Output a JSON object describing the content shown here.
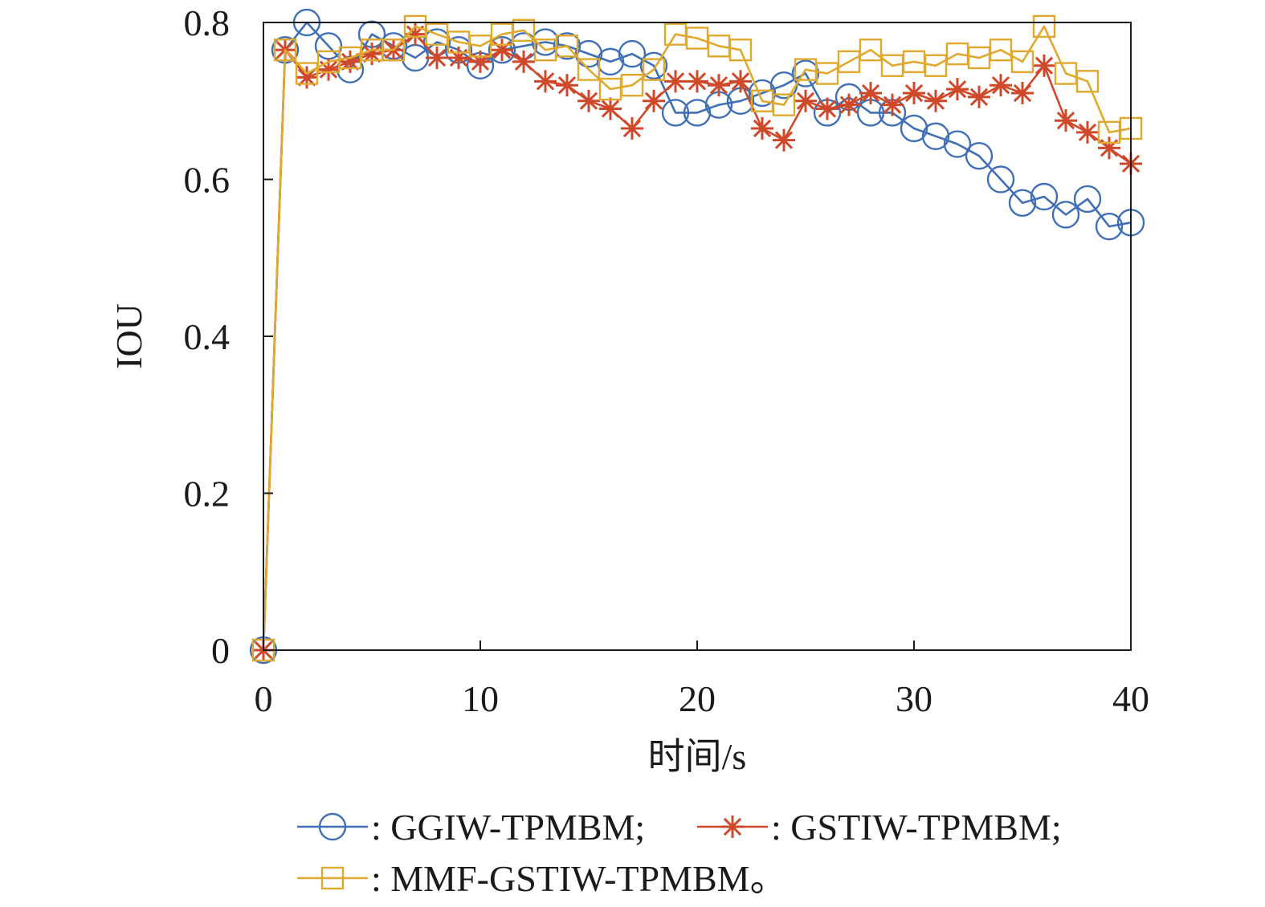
{
  "chart_data": {
    "type": "line",
    "title": "",
    "xlabel": "时间/s",
    "ylabel": "IOU",
    "xlim": [
      0,
      40
    ],
    "ylim": [
      0,
      0.8
    ],
    "xticks": [
      0,
      10,
      20,
      30,
      40
    ],
    "xtick_labels": [
      "0",
      "10",
      "20",
      "30",
      "40"
    ],
    "yticks": [
      0,
      0.2,
      0.4,
      0.6,
      0.8
    ],
    "ytick_labels": [
      "0",
      "0.2",
      "0.4",
      "0.6",
      "0.8"
    ],
    "grid": false,
    "legend_position": "bottom",
    "x": [
      0,
      1,
      2,
      3,
      4,
      5,
      6,
      7,
      8,
      9,
      10,
      11,
      12,
      13,
      14,
      15,
      16,
      17,
      18,
      19,
      20,
      21,
      22,
      23,
      24,
      25,
      26,
      27,
      28,
      29,
      30,
      31,
      32,
      33,
      34,
      35,
      36,
      37,
      38,
      39,
      40
    ],
    "series": [
      {
        "name": "GGIW-TPMBM",
        "label": ": GGIW-TPMBM;",
        "color": "#3f6fb5",
        "marker": "circle",
        "values": [
          0,
          0.765,
          0.8,
          0.77,
          0.74,
          0.785,
          0.77,
          0.755,
          0.775,
          0.765,
          0.745,
          0.765,
          0.77,
          0.775,
          0.77,
          0.76,
          0.75,
          0.76,
          0.745,
          0.685,
          0.685,
          0.695,
          0.7,
          0.71,
          0.72,
          0.735,
          0.685,
          0.705,
          0.685,
          0.685,
          0.665,
          0.655,
          0.645,
          0.63,
          0.6,
          0.57,
          0.578,
          0.555,
          0.575,
          0.54,
          0.545
        ]
      },
      {
        "name": "GSTIW-TPMBM",
        "label": ": GSTIW-TPMBM;",
        "color": "#d0482a",
        "marker": "asterisk",
        "values": [
          0,
          0.765,
          0.73,
          0.74,
          0.75,
          0.76,
          0.765,
          0.785,
          0.755,
          0.755,
          0.75,
          0.765,
          0.75,
          0.725,
          0.72,
          0.7,
          0.69,
          0.665,
          0.7,
          0.725,
          0.725,
          0.72,
          0.725,
          0.665,
          0.65,
          0.7,
          0.69,
          0.695,
          0.71,
          0.695,
          0.71,
          0.7,
          0.715,
          0.705,
          0.72,
          0.71,
          0.745,
          0.675,
          0.66,
          0.64,
          0.62
        ]
      },
      {
        "name": "MMF-GSTIW-TPMBM",
        "label": ": MMF-GSTIW-TPMBM。",
        "color": "#e0a92e",
        "marker": "square",
        "values": [
          0,
          0.765,
          0.735,
          0.75,
          0.755,
          0.765,
          0.765,
          0.795,
          0.785,
          0.775,
          0.77,
          0.785,
          0.79,
          0.765,
          0.77,
          0.74,
          0.715,
          0.72,
          0.74,
          0.785,
          0.78,
          0.77,
          0.765,
          0.7,
          0.695,
          0.74,
          0.735,
          0.75,
          0.765,
          0.745,
          0.75,
          0.745,
          0.76,
          0.755,
          0.765,
          0.75,
          0.795,
          0.735,
          0.725,
          0.66,
          0.665
        ]
      }
    ]
  }
}
